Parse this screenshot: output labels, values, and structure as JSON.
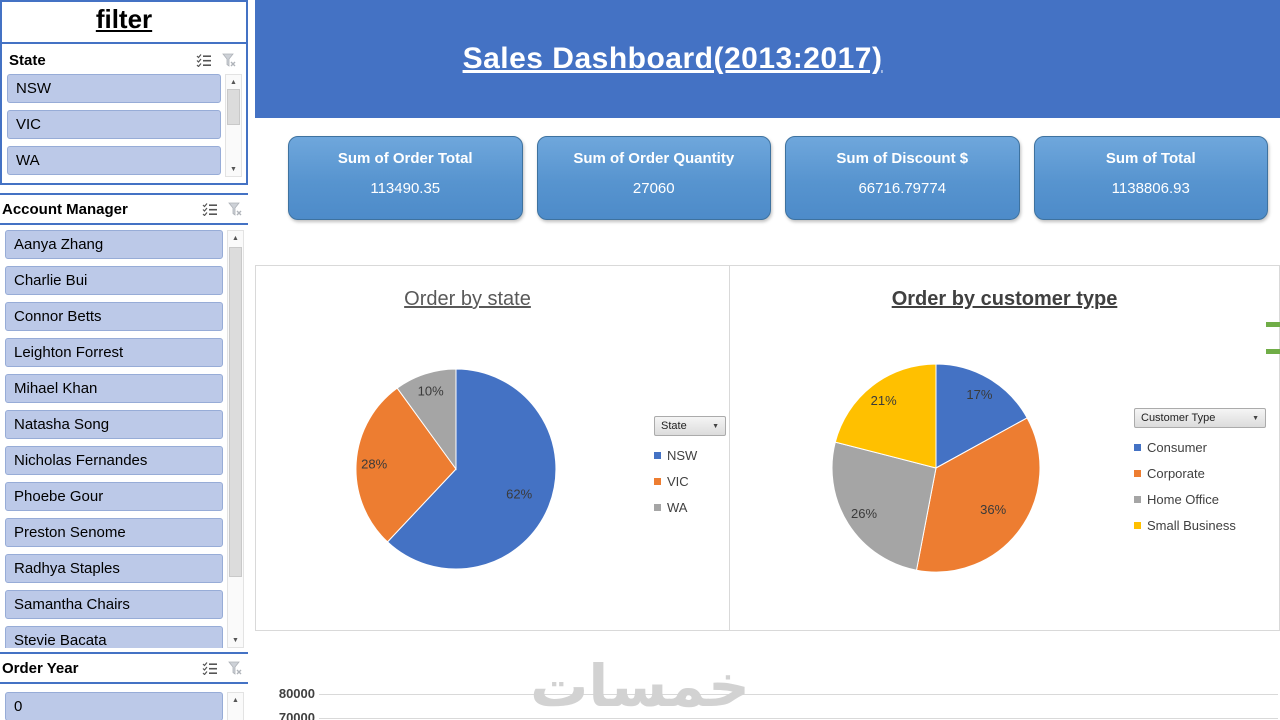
{
  "sidebar": {
    "title": "filter",
    "slicers": [
      {
        "name": "State",
        "items": [
          "NSW",
          "VIC",
          "WA"
        ]
      },
      {
        "name": "Account Manager",
        "items": [
          "Aanya Zhang",
          "Charlie Bui",
          "Connor Betts",
          "Leighton Forrest",
          "Mihael Khan",
          "Natasha Song",
          "Nicholas Fernandes",
          "Phoebe Gour",
          "Preston Senome",
          "Radhya Staples",
          "Samantha Chairs",
          "Stevie Bacata"
        ]
      },
      {
        "name": "Order Year",
        "items": [
          "0"
        ]
      }
    ]
  },
  "banner": {
    "title": "Sales Dashboard(2013:2017)"
  },
  "kpis": [
    {
      "label": "Sum of Order Total",
      "value": "113490.35"
    },
    {
      "label": "Sum of Order Quantity",
      "value": "27060"
    },
    {
      "label": "Sum of Discount $",
      "value": "66716.79774"
    },
    {
      "label": "Sum of Total",
      "value": "1138806.93"
    }
  ],
  "chart_data": [
    {
      "type": "pie",
      "title": "Order by state",
      "legend_title": "State",
      "legend_position": "right",
      "categories": [
        "NSW",
        "VIC",
        "WA"
      ],
      "values": [
        62,
        28,
        10
      ],
      "labels": [
        "62%",
        "28%",
        "10%"
      ],
      "colors": [
        "#4472C4",
        "#ED7D31",
        "#A5A5A5"
      ]
    },
    {
      "type": "pie",
      "title": "Order by customer type",
      "legend_title": "Customer Type",
      "legend_position": "right",
      "categories": [
        "Consumer",
        "Corporate",
        "Home Office",
        "Small Business"
      ],
      "values": [
        17,
        36,
        26,
        21
      ],
      "labels": [
        "17%",
        "36%",
        "26%",
        "21%"
      ],
      "colors": [
        "#4472C4",
        "#ED7D31",
        "#A5A5A5",
        "#FFC000"
      ]
    },
    {
      "type": "bar",
      "y_ticks": [
        "80000",
        "70000"
      ]
    }
  ],
  "watermark": "خمسات",
  "icons": {
    "dropdown": "▼",
    "scroll_up": "▲",
    "scroll_down": "▼"
  },
  "colors": {
    "banner_blue": "#4472C4",
    "kpi_blue": "#5B9BD5",
    "slicer_item_fill": "#BCC9E8",
    "pie_blue": "#4472C4",
    "pie_orange": "#ED7D31",
    "pie_gray": "#A5A5A5",
    "pie_yellow": "#FFC000",
    "green_marker": "#70AD47"
  }
}
